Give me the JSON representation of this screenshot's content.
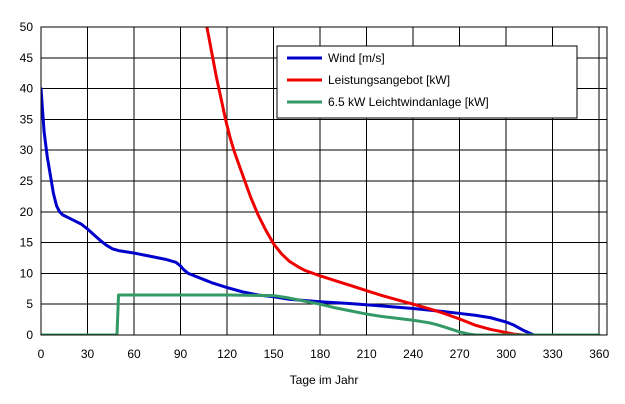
{
  "chart_data": {
    "type": "line",
    "xlabel": "Tage im Jahr",
    "ylabel": "",
    "xlim": [
      0,
      365
    ],
    "ylim": [
      0,
      50
    ],
    "xticks": [
      0,
      30,
      60,
      90,
      120,
      150,
      180,
      210,
      240,
      270,
      300,
      330,
      360
    ],
    "yticks": [
      0,
      5,
      10,
      15,
      20,
      25,
      30,
      35,
      40,
      45,
      50
    ],
    "grid": true,
    "legend_position": "top-right",
    "series": [
      {
        "name": "Wind [m/s]",
        "color": "#0000cc",
        "x": [
          0,
          2,
          4,
          6,
          8,
          10,
          12,
          14,
          18,
          22,
          26,
          30,
          34,
          38,
          42,
          46,
          50,
          55,
          60,
          70,
          80,
          87,
          90,
          92,
          95,
          100,
          105,
          110,
          120,
          130,
          140,
          150,
          160,
          170,
          180,
          200,
          220,
          240,
          260,
          270,
          280,
          290,
          300,
          305,
          310,
          315,
          318
        ],
        "y": [
          40,
          33,
          29,
          26,
          23,
          21,
          20,
          19.5,
          19,
          18.5,
          18,
          17.2,
          16.3,
          15.4,
          14.6,
          14.0,
          13.7,
          13.5,
          13.3,
          12.8,
          12.3,
          11.8,
          11.2,
          10.6,
          10.0,
          9.5,
          9.0,
          8.5,
          7.7,
          7.0,
          6.5,
          6.2,
          5.8,
          5.6,
          5.4,
          5.1,
          4.7,
          4.3,
          3.8,
          3.5,
          3.2,
          2.8,
          2.1,
          1.6,
          0.9,
          0.3,
          0
        ]
      },
      {
        "name": "Leistungsangebot [kW]",
        "color": "#ee0000",
        "x": [
          107,
          110,
          113,
          116,
          119,
          122,
          125,
          130,
          135,
          140,
          145,
          150,
          155,
          160,
          165,
          170,
          180,
          190,
          200,
          210,
          220,
          230,
          240,
          250,
          260,
          270,
          280,
          290,
          300,
          305,
          310,
          315
        ],
        "y": [
          50,
          46,
          42,
          38.5,
          35,
          32,
          29.5,
          26,
          22.5,
          19.5,
          17,
          14.8,
          13.2,
          12,
          11.2,
          10.5,
          9.6,
          8.8,
          8.0,
          7.2,
          6.4,
          5.7,
          5.0,
          4.3,
          3.5,
          2.6,
          1.6,
          0.9,
          0.4,
          0.15,
          0.05,
          0
        ]
      },
      {
        "name": "6.5 kW Leichtwindanlage [kW]",
        "color": "#339966",
        "x": [
          0,
          49,
          50,
          51,
          60,
          90,
          120,
          150,
          160,
          170,
          180,
          190,
          200,
          210,
          220,
          230,
          240,
          250,
          255,
          260,
          265,
          270,
          275,
          280,
          290,
          300,
          310,
          320,
          330,
          340,
          350,
          360
        ],
        "y": [
          0,
          0,
          6.5,
          6.5,
          6.5,
          6.5,
          6.5,
          6.4,
          6.0,
          5.5,
          5.0,
          4.4,
          3.9,
          3.4,
          3.0,
          2.7,
          2.4,
          2.0,
          1.7,
          1.3,
          0.9,
          0.5,
          0.2,
          0,
          0,
          0,
          0,
          0,
          0,
          0,
          0,
          0
        ]
      }
    ]
  }
}
